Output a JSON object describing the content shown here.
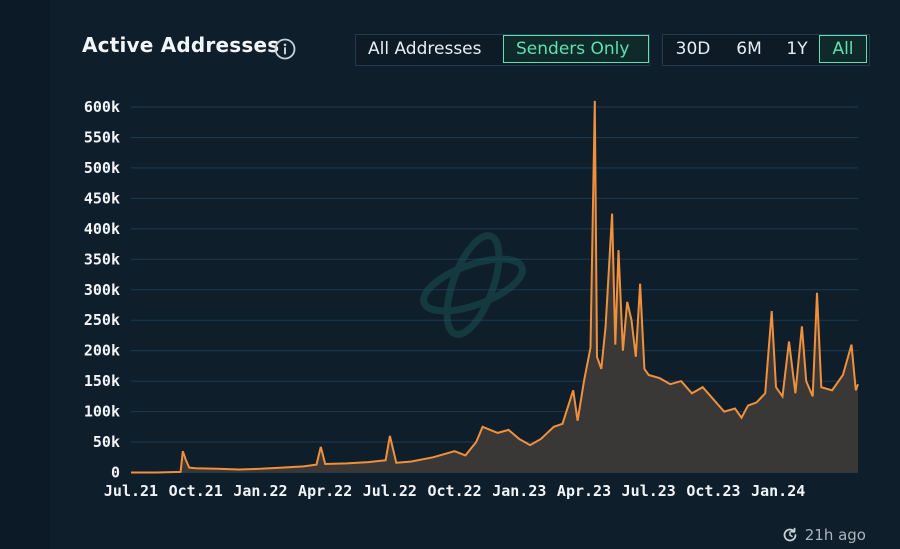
{
  "header": {
    "title": "Active Addresses",
    "filter_buttons": [
      {
        "label": "All Addresses",
        "active": false
      },
      {
        "label": "Senders Only",
        "active": true
      }
    ],
    "range_buttons": [
      {
        "label": "30D",
        "active": false
      },
      {
        "label": "6M",
        "active": false
      },
      {
        "label": "1Y",
        "active": false
      },
      {
        "label": "All",
        "active": true
      }
    ]
  },
  "footer": {
    "updated": "21h ago"
  },
  "colors": {
    "line": "#f0903c",
    "fill": "#3a3836",
    "grid": "#1f3a4d",
    "accent": "#5ee0b0",
    "text": "#e8eef2"
  },
  "chart_data": {
    "type": "area",
    "title": "Active Addresses",
    "xlabel": "",
    "ylabel": "",
    "ylim": [
      0,
      600000
    ],
    "yticks": [
      "0",
      "50k",
      "100k",
      "150k",
      "200k",
      "250k",
      "300k",
      "350k",
      "400k",
      "450k",
      "500k",
      "550k",
      "600k"
    ],
    "xticks": [
      "Jul.21",
      "Oct.21",
      "Jan.22",
      "Apr.22",
      "Jul.22",
      "Oct.22",
      "Jan.23",
      "Apr.23",
      "Jul.23",
      "Oct.23",
      "Jan.24"
    ],
    "grid": true,
    "series": [
      {
        "values": [
          [
            0,
            0
          ],
          [
            1.2,
            0
          ],
          [
            2.3,
            1000
          ],
          [
            2.4,
            35000
          ],
          [
            2.55,
            20000
          ],
          [
            2.7,
            8000
          ],
          [
            3.0,
            7000
          ],
          [
            4.0,
            6000
          ],
          [
            5.0,
            5000
          ],
          [
            6.0,
            6000
          ],
          [
            7.0,
            8000
          ],
          [
            8.0,
            10000
          ],
          [
            8.6,
            13000
          ],
          [
            8.8,
            42000
          ],
          [
            9.0,
            14000
          ],
          [
            10.0,
            15000
          ],
          [
            11.0,
            17000
          ],
          [
            11.8,
            20000
          ],
          [
            12.0,
            60000
          ],
          [
            12.3,
            16000
          ],
          [
            13.0,
            18000
          ],
          [
            14.0,
            25000
          ],
          [
            15.0,
            35000
          ],
          [
            15.5,
            28000
          ],
          [
            16.0,
            50000
          ],
          [
            16.3,
            75000
          ],
          [
            17.0,
            65000
          ],
          [
            17.5,
            70000
          ],
          [
            18.0,
            55000
          ],
          [
            18.5,
            45000
          ],
          [
            19.0,
            55000
          ],
          [
            19.6,
            75000
          ],
          [
            20.0,
            80000
          ],
          [
            20.5,
            135000
          ],
          [
            20.7,
            85000
          ],
          [
            21.0,
            150000
          ],
          [
            21.3,
            205000
          ],
          [
            21.5,
            610000
          ],
          [
            21.6,
            190000
          ],
          [
            21.8,
            170000
          ],
          [
            22.0,
            240000
          ],
          [
            22.3,
            425000
          ],
          [
            22.45,
            210000
          ],
          [
            22.6,
            365000
          ],
          [
            22.8,
            200000
          ],
          [
            23.0,
            280000
          ],
          [
            23.2,
            250000
          ],
          [
            23.4,
            190000
          ],
          [
            23.6,
            310000
          ],
          [
            23.8,
            170000
          ],
          [
            24.0,
            160000
          ],
          [
            24.5,
            155000
          ],
          [
            25.0,
            145000
          ],
          [
            25.5,
            150000
          ],
          [
            26.0,
            130000
          ],
          [
            26.5,
            140000
          ],
          [
            27.0,
            120000
          ],
          [
            27.5,
            100000
          ],
          [
            28.0,
            105000
          ],
          [
            28.3,
            90000
          ],
          [
            28.6,
            110000
          ],
          [
            29.0,
            115000
          ],
          [
            29.4,
            130000
          ],
          [
            29.7,
            265000
          ],
          [
            29.9,
            140000
          ],
          [
            30.2,
            125000
          ],
          [
            30.5,
            215000
          ],
          [
            30.8,
            130000
          ],
          [
            31.1,
            240000
          ],
          [
            31.3,
            150000
          ],
          [
            31.6,
            125000
          ],
          [
            31.8,
            295000
          ],
          [
            32.0,
            140000
          ],
          [
            32.5,
            135000
          ],
          [
            33.0,
            160000
          ],
          [
            33.4,
            210000
          ],
          [
            33.6,
            135000
          ],
          [
            33.7,
            145000
          ]
        ]
      }
    ]
  }
}
